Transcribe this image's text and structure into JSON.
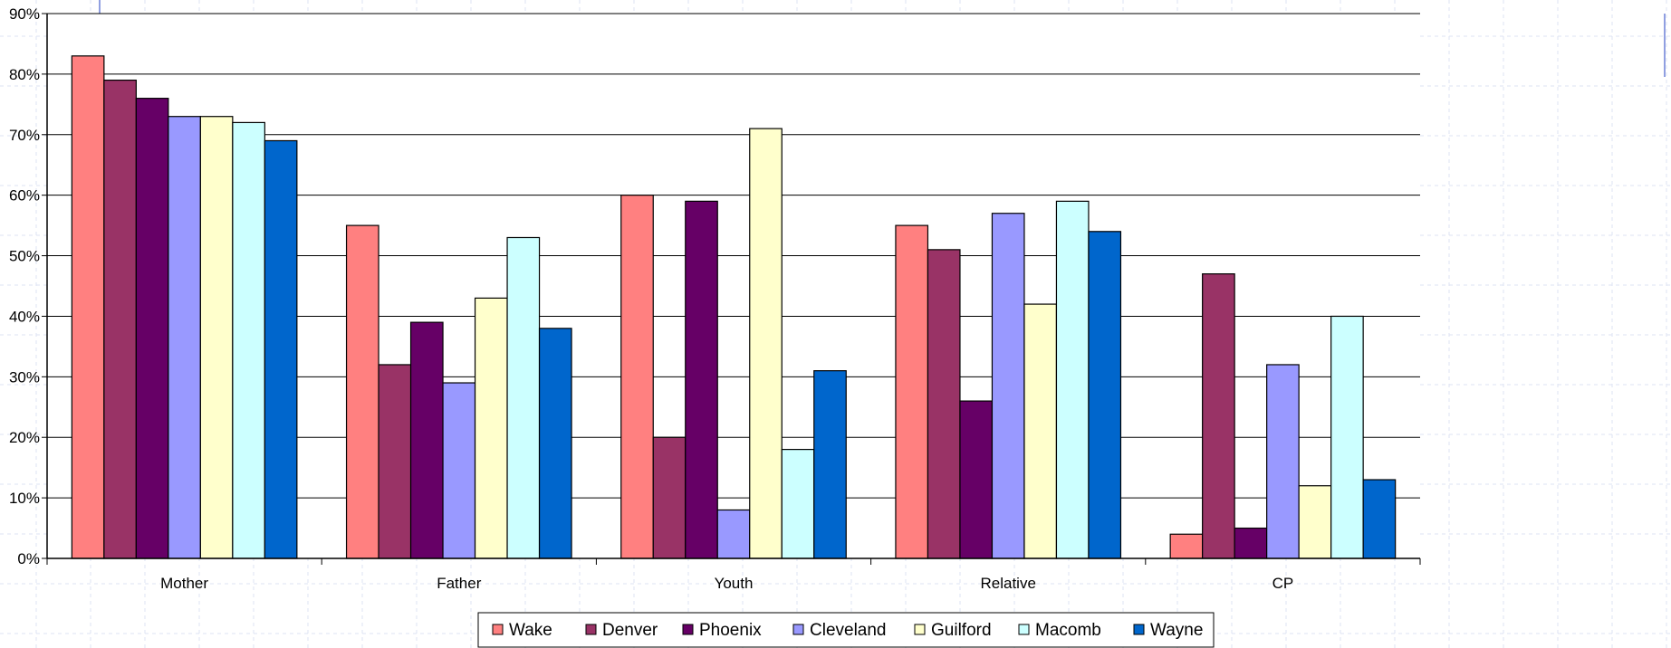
{
  "chart_data": {
    "type": "bar",
    "title": "",
    "xlabel": "",
    "ylabel": "",
    "categories": [
      "Mother",
      "Father",
      "Youth",
      "Relative",
      "CP"
    ],
    "ylim": [
      0,
      90
    ],
    "yticks": [
      0,
      10,
      20,
      30,
      40,
      50,
      60,
      70,
      80,
      90
    ],
    "ytick_labels": [
      "0%",
      "10%",
      "20%",
      "30%",
      "40%",
      "50%",
      "60%",
      "70%",
      "80%",
      "90%"
    ],
    "grid": true,
    "legend_position": "bottom",
    "series": [
      {
        "name": "Wake",
        "color": "#ff8080",
        "values": [
          83,
          55,
          60,
          55,
          4
        ]
      },
      {
        "name": "Denver",
        "color": "#993366",
        "values": [
          79,
          32,
          20,
          51,
          47
        ]
      },
      {
        "name": "Phoenix",
        "color": "#660066",
        "values": [
          76,
          39,
          59,
          26,
          5
        ]
      },
      {
        "name": "Cleveland",
        "color": "#9999ff",
        "values": [
          73,
          29,
          8,
          57,
          32
        ]
      },
      {
        "name": "Guilford",
        "color": "#ffffcc",
        "values": [
          73,
          43,
          71,
          42,
          12
        ]
      },
      {
        "name": "Macomb",
        "color": "#ccffff",
        "values": [
          72,
          53,
          18,
          59,
          40
        ]
      },
      {
        "name": "Wayne",
        "color": "#0066cc",
        "values": [
          69,
          38,
          31,
          54,
          13
        ]
      }
    ]
  }
}
